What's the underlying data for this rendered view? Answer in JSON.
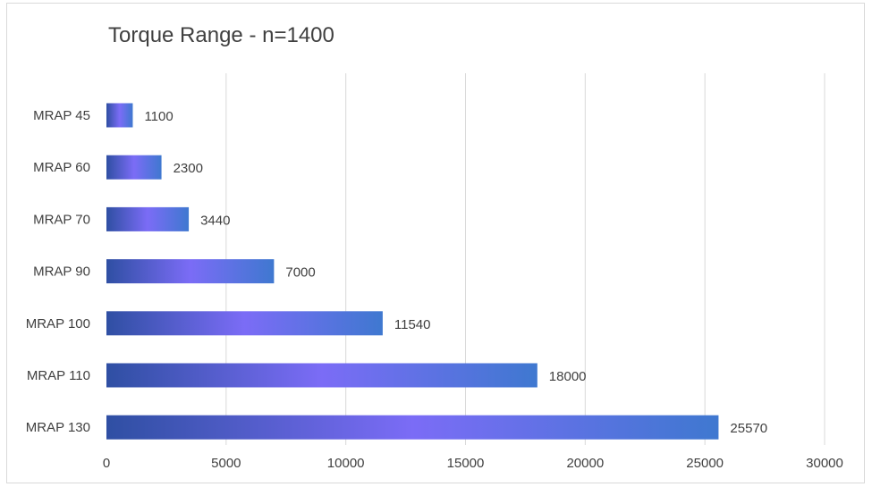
{
  "chart_data": {
    "type": "bar",
    "orientation": "horizontal",
    "title": "Torque Range - n=1400",
    "categories": [
      "MRAP 45",
      "MRAP 60",
      "MRAP 70",
      "MRAP 90",
      "MRAP 100",
      "MRAP 110",
      "MRAP 130"
    ],
    "values": [
      1100,
      2300,
      3440,
      7000,
      11540,
      18000,
      25570
    ],
    "data_labels": [
      "1100",
      "2300",
      "3440",
      "7000",
      "11540",
      "18000",
      "25570"
    ],
    "xlim": [
      0,
      30000
    ],
    "xticks": [
      0,
      5000,
      10000,
      15000,
      20000,
      25000,
      30000
    ],
    "xtick_labels": [
      "0",
      "5000",
      "10000",
      "15000",
      "20000",
      "25000",
      "30000"
    ],
    "xlabel": "",
    "ylabel": "",
    "grid": "vertical",
    "legend": "none",
    "colors": {
      "gradient_start": "#2f4fa3",
      "gradient_mid": "#7b6cf6",
      "gradient_end": "#3f78d0",
      "gridline": "#d9d9d9",
      "text": "#404040"
    }
  }
}
